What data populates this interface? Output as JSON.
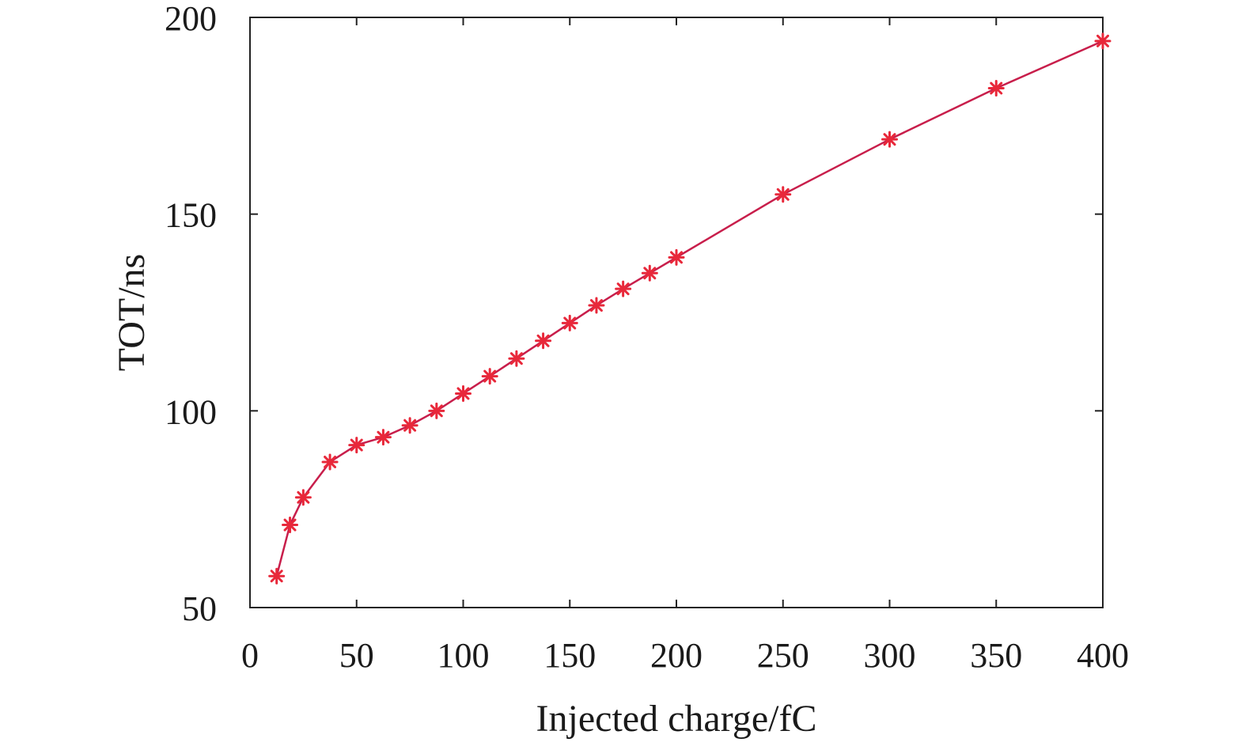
{
  "chart_data": {
    "type": "line",
    "title": "",
    "xlabel": "Injected charge/fC",
    "ylabel": "TOT/ns",
    "xlim": [
      0,
      400
    ],
    "ylim": [
      50,
      200
    ],
    "xticks": [
      0,
      50,
      100,
      150,
      200,
      250,
      300,
      350,
      400
    ],
    "yticks": [
      50,
      100,
      150,
      200
    ],
    "grid": false,
    "legend": "none",
    "marker": "asterisk",
    "colors": {
      "line": "#c81e4b",
      "marker": "#e8283a",
      "axis": "#222222"
    },
    "series": [
      {
        "x": [
          12.5,
          18.75,
          25,
          37.5,
          50,
          62.5,
          75,
          87.5,
          100,
          112.5,
          125,
          137.5,
          150,
          162.5,
          175,
          187.5,
          200,
          250,
          300,
          350,
          400
        ],
        "values": [
          58,
          71,
          78,
          87,
          91.3,
          93.3,
          96.3,
          100,
          104.4,
          108.8,
          113.3,
          117.8,
          122.3,
          126.8,
          131,
          135,
          139,
          155,
          169,
          182,
          194
        ]
      }
    ]
  }
}
